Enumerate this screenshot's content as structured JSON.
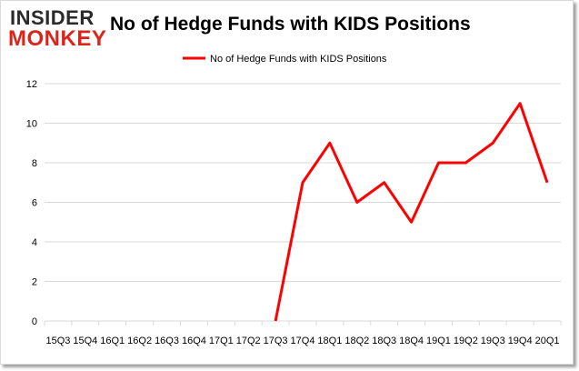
{
  "logo": {
    "line1": "INSIDER",
    "line2": "MONKEY"
  },
  "chart_data": {
    "type": "line",
    "title": "No of Hedge Funds with KIDS Positions",
    "xlabel": "",
    "ylabel": "",
    "categories": [
      "15Q3",
      "15Q4",
      "16Q1",
      "16Q2",
      "16Q3",
      "16Q4",
      "17Q1",
      "17Q2",
      "17Q3",
      "17Q4",
      "18Q1",
      "18Q2",
      "18Q3",
      "18Q4",
      "19Q1",
      "19Q2",
      "19Q3",
      "19Q4",
      "20Q1"
    ],
    "series": [
      {
        "name": "No of Hedge Funds with KIDS Positions",
        "values": [
          null,
          null,
          null,
          null,
          null,
          null,
          null,
          null,
          0,
          7,
          9,
          6,
          7,
          5,
          8,
          8,
          9,
          11,
          7
        ]
      }
    ],
    "ylim": [
      0,
      12
    ],
    "yticks": [
      0,
      2,
      4,
      6,
      8,
      10,
      12
    ],
    "grid": true,
    "legend_position": "top",
    "colors": {
      "line": "#ff0000",
      "grid": "#d9d9d9"
    }
  }
}
